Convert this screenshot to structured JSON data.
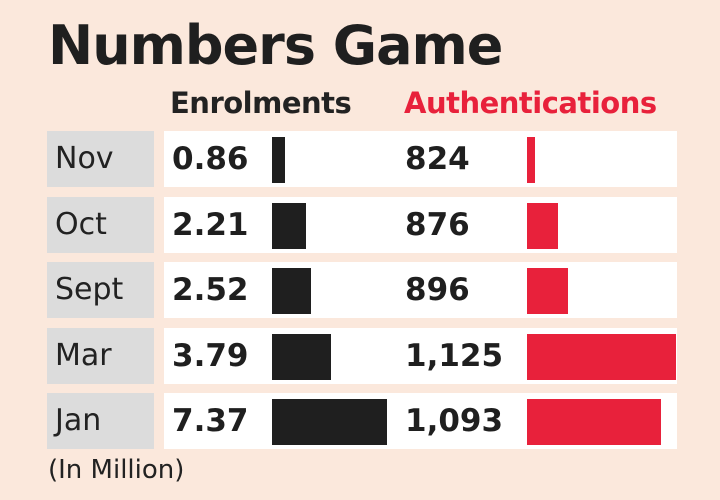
{
  "chart_data": {
    "type": "bar",
    "title": "Numbers Game",
    "categories": [
      "Nov",
      "Oct",
      "Sept",
      "Mar",
      "Jan"
    ],
    "series": [
      {
        "name": "Enrolments",
        "values": [
          0.86,
          2.21,
          2.52,
          3.79,
          7.37
        ],
        "labels": [
          "0.86",
          "2.21",
          "2.52",
          "3.79",
          "7.37"
        ],
        "color": "#1f1f1f"
      },
      {
        "name": "Authentications",
        "values": [
          824,
          876,
          896,
          1125,
          1093
        ],
        "labels": [
          "824",
          "876",
          "896",
          "1,125",
          "1,093"
        ],
        "color": "#e8213b"
      }
    ],
    "unit_note": "(In Million)",
    "orientation": "horizontal",
    "legend": "top"
  }
}
